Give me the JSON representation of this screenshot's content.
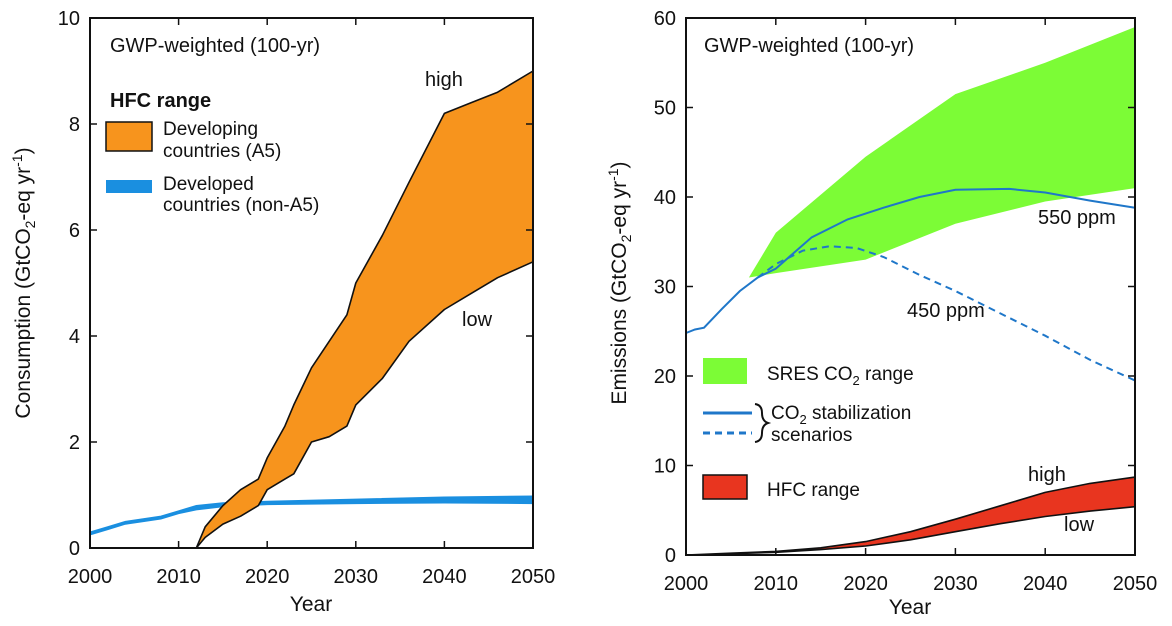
{
  "chart_data": [
    {
      "type": "area",
      "subtitle": "GWP-weighted (100-yr)",
      "xlabel": "Year",
      "ylabel": "Consumption (GtCO",
      "ylabel_sub": "2",
      "ylabel_tail": "-eq yr",
      "ylabel_sup": "-1",
      "ylabel_close": ")",
      "xlim": [
        2000,
        2050
      ],
      "ylim": [
        0,
        10
      ],
      "xticks": [
        2000,
        2010,
        2020,
        2030,
        2040,
        2050
      ],
      "yticks": [
        0,
        2,
        4,
        6,
        8,
        10
      ],
      "legend_title": "HFC range",
      "legend": [
        {
          "label_line1": "Developing",
          "label_line2": "countries (A5)",
          "color": "#f7941d"
        },
        {
          "label_line1": "Developed",
          "label_line2": "countries (non-A5)",
          "color": "#1a8fe0"
        }
      ],
      "annotations": {
        "high": "high",
        "low": "low"
      },
      "series": [
        {
          "color": "#f7941d",
          "x": [
            2012,
            2013,
            2015,
            2017,
            2019,
            2020,
            2022,
            2023,
            2025,
            2027,
            2029,
            2030,
            2033,
            2036,
            2040,
            2043,
            2046,
            2050
          ],
          "high": [
            0.0,
            0.4,
            0.8,
            1.1,
            1.3,
            1.7,
            2.3,
            2.7,
            3.4,
            3.9,
            4.4,
            5.0,
            5.9,
            6.9,
            8.2,
            8.4,
            8.6,
            9.0
          ],
          "low": [
            0.0,
            0.2,
            0.45,
            0.6,
            0.8,
            1.1,
            1.3,
            1.4,
            2.0,
            2.1,
            2.3,
            2.7,
            3.2,
            3.9,
            4.5,
            4.8,
            5.1,
            5.4
          ]
        },
        {
          "color": "#1a8fe0",
          "x": [
            2000,
            2002,
            2004,
            2006,
            2008,
            2010,
            2012,
            2015,
            2020,
            2030,
            2040,
            2050
          ],
          "high": [
            0.3,
            0.4,
            0.5,
            0.55,
            0.6,
            0.7,
            0.8,
            0.85,
            0.88,
            0.92,
            0.96,
            0.98
          ],
          "low": [
            0.25,
            0.35,
            0.45,
            0.5,
            0.55,
            0.65,
            0.72,
            0.78,
            0.82,
            0.84,
            0.85,
            0.84
          ]
        },
        {
          "color": "#111111",
          "x": [
            2000,
            2012
          ],
          "values": [
            0.0,
            0.0
          ]
        }
      ]
    },
    {
      "type": "area",
      "subtitle": "GWP-weighted (100-yr)",
      "xlabel": "Year",
      "ylabel": "Emissions (GtCO",
      "ylabel_sub": "2",
      "ylabel_tail": "-eq yr",
      "ylabel_sup": "-1",
      "ylabel_close": ")",
      "xlim": [
        2000,
        2050
      ],
      "ylim": [
        0,
        60
      ],
      "xticks": [
        2000,
        2010,
        2020,
        2030,
        2040,
        2050
      ],
      "yticks": [
        0,
        10,
        20,
        30,
        40,
        50,
        60
      ],
      "legend": [
        {
          "label": "SRES CO",
          "sub": "2",
          "tail": " range",
          "color": "#7cfc36"
        },
        {
          "label": "CO",
          "sub": "2",
          "tail": " stabilization",
          "color": "#1f77c9"
        },
        {
          "label": "scenarios",
          "color": "#1f77c9"
        },
        {
          "label": "HFC range",
          "color": "#e8351f"
        }
      ],
      "annotations": {
        "p550": "550 ppm",
        "p450": "450 ppm",
        "high": "high",
        "low": "low"
      },
      "series": [
        {
          "color": "#7cfc36",
          "x": [
            2007,
            2010,
            2020,
            2030,
            2040,
            2050
          ],
          "high": [
            31,
            36,
            44.5,
            51.5,
            55,
            59
          ],
          "low": [
            31,
            31.5,
            33,
            37,
            39.5,
            41
          ]
        },
        {
          "color": "#1f77c9",
          "x": [
            2000,
            2001,
            2002,
            2004,
            2006,
            2008,
            2010,
            2014,
            2018,
            2022,
            2026,
            2030,
            2036,
            2040,
            2045,
            2050
          ],
          "values": [
            24.8,
            25.2,
            25.4,
            27.5,
            29.5,
            31,
            32,
            35.5,
            37.5,
            38.8,
            40,
            40.8,
            40.9,
            40.5,
            39.6,
            38.8
          ]
        },
        {
          "color": "#1f77c9",
          "x": [
            2008,
            2010,
            2013,
            2016,
            2019,
            2022,
            2026,
            2030,
            2035,
            2040,
            2045,
            2050
          ],
          "values": [
            31,
            32.5,
            34,
            34.5,
            34.3,
            33.3,
            31.3,
            29.5,
            27,
            24.5,
            21.8,
            19.5
          ]
        },
        {
          "color": "#e8351f",
          "x": [
            2000,
            2005,
            2010,
            2015,
            2020,
            2025,
            2030,
            2035,
            2040,
            2045,
            2050
          ],
          "high": [
            0.0,
            0.2,
            0.4,
            0.8,
            1.5,
            2.6,
            4.0,
            5.5,
            7.0,
            8.0,
            8.7
          ],
          "low": [
            0.0,
            0.15,
            0.3,
            0.6,
            1.0,
            1.7,
            2.6,
            3.5,
            4.3,
            4.9,
            5.4
          ]
        }
      ]
    }
  ]
}
